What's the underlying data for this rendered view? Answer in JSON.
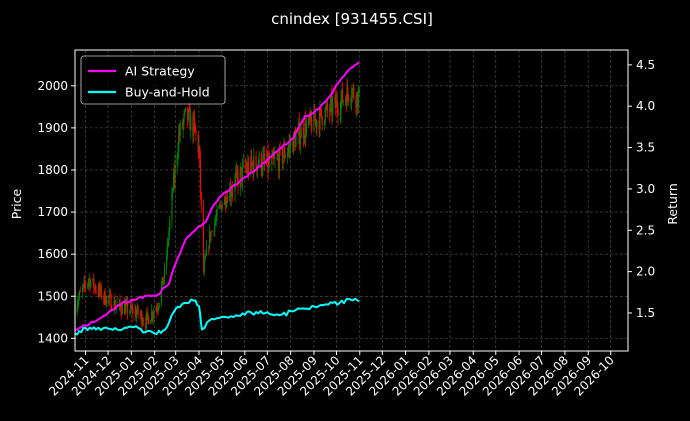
{
  "chart_data": {
    "type": "line",
    "title": "cnindex [931455.CSI]",
    "ylabel": "Price",
    "y2label": "Return",
    "ylim": [
      1370,
      2085
    ],
    "y2lim": [
      1.04,
      4.68
    ],
    "yticks": [
      1400,
      1500,
      1600,
      1700,
      1800,
      1900,
      2000
    ],
    "y2ticks": [
      1.5,
      2.0,
      2.5,
      3.0,
      3.5,
      4.0,
      4.5
    ],
    "xlim": [
      "2024-10-18",
      "2026-10-24"
    ],
    "xticks": [
      "2024-11",
      "2024-12",
      "2025-01",
      "2025-02",
      "2025-03",
      "2025-04",
      "2025-05",
      "2025-06",
      "2025-07",
      "2025-08",
      "2025-09",
      "2025-10",
      "2025-11",
      "2025-12",
      "2026-01",
      "2026-02",
      "2026-03",
      "2026-04",
      "2026-05",
      "2026-06",
      "2026-07",
      "2026-08",
      "2026-09",
      "2026-10"
    ],
    "grid": true,
    "legend_position": "top-left",
    "colors": {
      "up": "#008000",
      "down": "#ff0000",
      "strategy": "#ff00ff",
      "buyhold": "#00ffff",
      "background": "#000000"
    },
    "series": [
      {
        "name": "AI Strategy",
        "axis": "right",
        "points": [
          [
            "2024-10-18",
            1.3
          ],
          [
            "2024-11-01",
            1.35
          ],
          [
            "2024-11-15",
            1.4
          ],
          [
            "2024-12-01",
            1.5
          ],
          [
            "2024-12-20",
            1.62
          ],
          [
            "2025-01-10",
            1.68
          ],
          [
            "2025-02-05",
            1.72
          ],
          [
            "2025-02-20",
            1.85
          ],
          [
            "2025-03-01",
            2.1
          ],
          [
            "2025-03-15",
            2.4
          ],
          [
            "2025-04-01",
            2.55
          ],
          [
            "2025-04-10",
            2.6
          ],
          [
            "2025-04-20",
            2.8
          ],
          [
            "2025-05-01",
            2.92
          ],
          [
            "2025-05-20",
            3.05
          ],
          [
            "2025-06-10",
            3.2
          ],
          [
            "2025-07-01",
            3.35
          ],
          [
            "2025-07-20",
            3.5
          ],
          [
            "2025-08-05",
            3.62
          ],
          [
            "2025-08-20",
            3.88
          ],
          [
            "2025-09-01",
            3.92
          ],
          [
            "2025-09-20",
            4.1
          ],
          [
            "2025-10-05",
            4.3
          ],
          [
            "2025-10-20",
            4.46
          ],
          [
            "2025-10-31",
            4.53
          ]
        ]
      },
      {
        "name": "Buy-and-Hold",
        "axis": "right",
        "points": [
          [
            "2024-10-18",
            1.25
          ],
          [
            "2024-11-01",
            1.32
          ],
          [
            "2024-11-15",
            1.3
          ],
          [
            "2024-12-01",
            1.31
          ],
          [
            "2024-12-20",
            1.3
          ],
          [
            "2025-01-10",
            1.32
          ],
          [
            "2025-01-20",
            1.27
          ],
          [
            "2025-02-01",
            1.25
          ],
          [
            "2025-02-15",
            1.3
          ],
          [
            "2025-03-01",
            1.55
          ],
          [
            "2025-03-15",
            1.62
          ],
          [
            "2025-03-25",
            1.65
          ],
          [
            "2025-04-01",
            1.58
          ],
          [
            "2025-04-05",
            1.3
          ],
          [
            "2025-04-15",
            1.41
          ],
          [
            "2025-05-01",
            1.45
          ],
          [
            "2025-05-20",
            1.47
          ],
          [
            "2025-06-10",
            1.5
          ],
          [
            "2025-07-01",
            1.51
          ],
          [
            "2025-07-20",
            1.48
          ],
          [
            "2025-08-05",
            1.52
          ],
          [
            "2025-08-20",
            1.55
          ],
          [
            "2025-09-01",
            1.58
          ],
          [
            "2025-09-20",
            1.6
          ],
          [
            "2025-10-05",
            1.62
          ],
          [
            "2025-10-20",
            1.66
          ],
          [
            "2025-10-31",
            1.64
          ]
        ]
      },
      {
        "name": "candles",
        "axis": "left",
        "price_path": [
          [
            "2024-10-18",
            1480
          ],
          [
            "2024-11-05",
            1540
          ],
          [
            "2024-11-25",
            1500
          ],
          [
            "2024-12-10",
            1480
          ],
          [
            "2024-12-25",
            1470
          ],
          [
            "2025-01-10",
            1460
          ],
          [
            "2025-01-20",
            1440
          ],
          [
            "2025-02-05",
            1480
          ],
          [
            "2025-02-15",
            1560
          ],
          [
            "2025-02-25",
            1750
          ],
          [
            "2025-03-05",
            1880
          ],
          [
            "2025-03-15",
            1930
          ],
          [
            "2025-03-25",
            1900
          ],
          [
            "2025-04-01",
            1850
          ],
          [
            "2025-04-07",
            1560
          ],
          [
            "2025-04-15",
            1640
          ],
          [
            "2025-05-01",
            1720
          ],
          [
            "2025-05-15",
            1760
          ],
          [
            "2025-06-01",
            1800
          ],
          [
            "2025-06-20",
            1820
          ],
          [
            "2025-07-05",
            1810
          ],
          [
            "2025-07-20",
            1830
          ],
          [
            "2025-08-05",
            1870
          ],
          [
            "2025-08-20",
            1900
          ],
          [
            "2025-09-05",
            1920
          ],
          [
            "2025-09-20",
            1940
          ],
          [
            "2025-10-05",
            1960
          ],
          [
            "2025-10-20",
            1990
          ],
          [
            "2025-10-31",
            1970
          ]
        ]
      }
    ]
  },
  "legend": {
    "items": [
      {
        "label": "AI Strategy",
        "color": "#ff00ff"
      },
      {
        "label": "Buy-and-Hold",
        "color": "#00ffff"
      }
    ]
  }
}
